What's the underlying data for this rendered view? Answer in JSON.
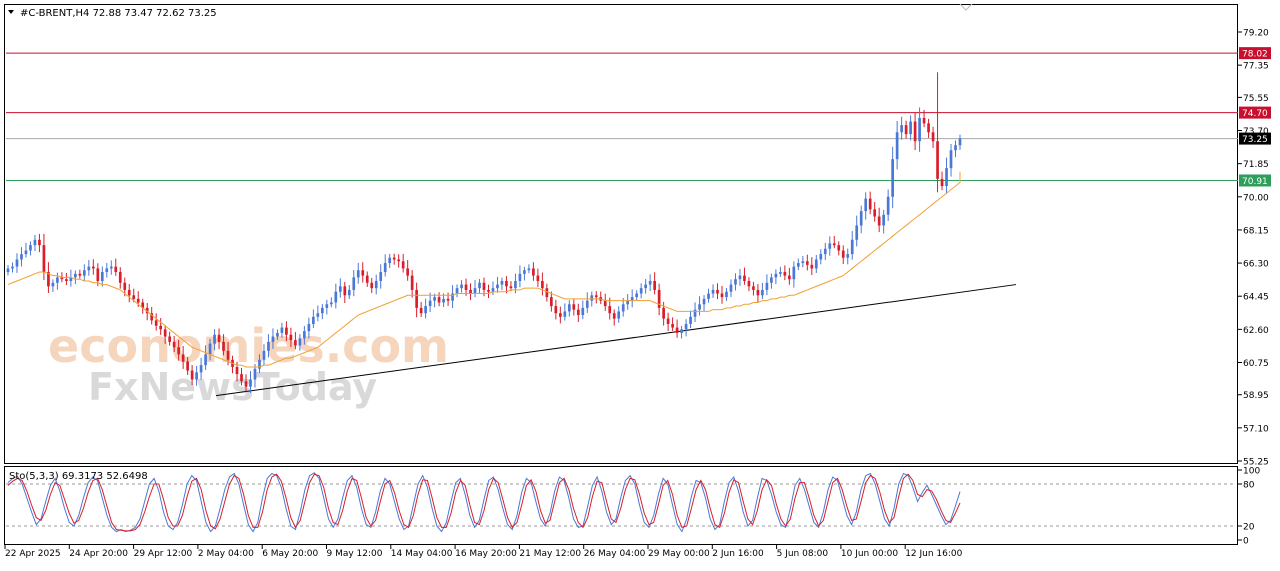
{
  "header": {
    "symbol_line": "#C-BRENT,H4  72.88 73.47 72.62 73.25",
    "menu_icon": "triangle-down-icon"
  },
  "watermark": {
    "line1": "economies.com",
    "line2": "FxNewsToday"
  },
  "colors": {
    "bull_candle": "#4a78d6",
    "bear_candle": "#d91e2a",
    "ma_line": "#f0a030",
    "resistance_line": "#c8102e",
    "support_line": "#2e9e5b",
    "current_line": "#aaaaaa",
    "trendline": "#000000",
    "stoch_main": "#4a78d6",
    "stoch_signal": "#d91e2a"
  },
  "chart_data": [
    {
      "type": "candlestick",
      "title": "#C-BRENT,H4",
      "last_bar": {
        "open": 72.88,
        "high": 73.47,
        "low": 72.62,
        "close": 73.25
      },
      "ylim": [
        55.25,
        80.5
      ],
      "y_ticks": [
        "79.20",
        "77.35",
        "75.55",
        "73.70",
        "71.85",
        "70.00",
        "68.15",
        "66.30",
        "64.45",
        "62.60",
        "60.75",
        "58.95",
        "57.10",
        "55.25"
      ],
      "x_ticks": [
        "22 Apr 2025",
        "24 Apr 20:00",
        "29 Apr 12:00",
        "2 May 04:00",
        "6 May 20:00",
        "9 May 12:00",
        "14 May 04:00",
        "16 May 20:00",
        "21 May 12:00",
        "26 May 04:00",
        "29 May 00:00",
        "2 Jun 16:00",
        "5 Jun 08:00",
        "10 Jun 00:00",
        "12 Jun 16:00"
      ],
      "price_labels": [
        {
          "value": 78.02,
          "text": "78.02",
          "role": "resistance"
        },
        {
          "value": 74.7,
          "text": "74.70",
          "role": "resistance"
        },
        {
          "value": 73.25,
          "text": "73.25",
          "role": "current"
        },
        {
          "value": 70.91,
          "text": "70.91",
          "role": "support"
        }
      ],
      "trendline": {
        "from": {
          "bar": 0.24,
          "value": 58.9
        },
        "to": {
          "bar": 1.0,
          "value": 65.1
        }
      },
      "closes": [
        66.0,
        66.1,
        66.5,
        66.8,
        67.0,
        67.3,
        67.6,
        67.3,
        65.8,
        65.0,
        65.2,
        65.5,
        65.4,
        65.3,
        65.5,
        65.7,
        65.6,
        65.9,
        66.1,
        66.0,
        65.3,
        65.8,
        66.0,
        66.1,
        65.8,
        65.2,
        64.8,
        64.5,
        64.3,
        64.1,
        63.8,
        63.5,
        63.1,
        62.8,
        62.6,
        62.2,
        61.9,
        61.6,
        61.2,
        60.8,
        60.3,
        59.8,
        60.2,
        60.6,
        61.2,
        61.8,
        62.3,
        61.9,
        61.4,
        60.9,
        60.5,
        60.1,
        59.7,
        59.4,
        59.8,
        60.4,
        60.9,
        61.4,
        61.9,
        62.2,
        62.4,
        62.7,
        62.3,
        62.0,
        61.7,
        62.1,
        62.5,
        62.9,
        63.3,
        63.5,
        63.8,
        64.0,
        64.1,
        64.7,
        65.0,
        64.5,
        64.8,
        65.5,
        65.9,
        65.6,
        65.2,
        64.9,
        65.3,
        65.8,
        66.3,
        66.6,
        66.5,
        66.4,
        66.0,
        65.6,
        64.8,
        63.8,
        63.5,
        63.9,
        64.2,
        64.4,
        64.1,
        64.3,
        64.2,
        64.6,
        64.9,
        65.1,
        64.8,
        64.6,
        64.9,
        65.2,
        64.8,
        64.7,
        64.9,
        65.1,
        65.3,
        65.0,
        64.9,
        65.3,
        65.7,
        65.9,
        66.0,
        65.6,
        65.3,
        64.9,
        64.4,
        63.9,
        63.5,
        63.3,
        63.6,
        64.0,
        63.7,
        63.4,
        63.8,
        64.2,
        64.5,
        64.4,
        64.2,
        63.9,
        63.5,
        63.2,
        63.6,
        64.0,
        64.2,
        64.4,
        64.6,
        64.9,
        65.1,
        65.3,
        64.8,
        63.8,
        63.2,
        62.9,
        62.7,
        62.4,
        62.6,
        62.9,
        63.3,
        63.7,
        64.0,
        64.3,
        64.6,
        64.8,
        64.6,
        64.4,
        64.7,
        65.1,
        65.4,
        65.6,
        65.3,
        65.0,
        64.8,
        64.5,
        64.8,
        65.2,
        65.5,
        65.7,
        65.8,
        65.6,
        65.4,
        66.1,
        66.3,
        66.4,
        66.2,
        66.0,
        66.5,
        66.8,
        67.1,
        67.4,
        67.3,
        67.0,
        66.6,
        66.8,
        67.6,
        68.4,
        69.2,
        69.9,
        69.3,
        68.9,
        68.4,
        69.0,
        70.0,
        72.1,
        73.6,
        74.0,
        73.5,
        74.2,
        73.1,
        74.4,
        74.1,
        73.6,
        73.1,
        71.0,
        70.6,
        71.6,
        72.6,
        72.88,
        73.25
      ],
      "ma": [
        65.1,
        65.2,
        65.3,
        65.4,
        65.5,
        65.6,
        65.7,
        65.8,
        65.8,
        65.7,
        65.6,
        65.6,
        65.5,
        65.5,
        65.5,
        65.4,
        65.4,
        65.3,
        65.3,
        65.2,
        65.2,
        65.1,
        65.1,
        65.0,
        64.9,
        64.8,
        64.6,
        64.4,
        64.2,
        64.0,
        63.8,
        63.6,
        63.4,
        63.2,
        63.0,
        62.8,
        62.6,
        62.4,
        62.2,
        62.0,
        61.8,
        61.6,
        61.5,
        61.4,
        61.3,
        61.2,
        61.1,
        61.0,
        60.9,
        60.8,
        60.7,
        60.6,
        60.6,
        60.5,
        60.5,
        60.5,
        60.5,
        60.6,
        60.6,
        60.7,
        60.8,
        60.9,
        61.0,
        61.0,
        61.1,
        61.2,
        61.3,
        61.4,
        61.5,
        61.6,
        61.8,
        62.0,
        62.2,
        62.4,
        62.6,
        62.8,
        63.0,
        63.2,
        63.4,
        63.5,
        63.6,
        63.7,
        63.8,
        63.9,
        64.0,
        64.1,
        64.2,
        64.3,
        64.4,
        64.5,
        64.5,
        64.5,
        64.5,
        64.5,
        64.5,
        64.5,
        64.5,
        64.5,
        64.5,
        64.5,
        64.6,
        64.6,
        64.6,
        64.6,
        64.6,
        64.6,
        64.6,
        64.6,
        64.7,
        64.7,
        64.7,
        64.7,
        64.8,
        64.8,
        64.8,
        64.9,
        64.9,
        64.9,
        64.9,
        64.8,
        64.7,
        64.6,
        64.5,
        64.4,
        64.3,
        64.3,
        64.3,
        64.3,
        64.3,
        64.3,
        64.3,
        64.3,
        64.3,
        64.2,
        64.2,
        64.2,
        64.2,
        64.2,
        64.2,
        64.2,
        64.2,
        64.2,
        64.2,
        64.2,
        64.1,
        64.0,
        63.9,
        63.8,
        63.7,
        63.6,
        63.6,
        63.6,
        63.6,
        63.6,
        63.6,
        63.6,
        63.6,
        63.7,
        63.7,
        63.7,
        63.8,
        63.8,
        63.9,
        63.9,
        64.0,
        64.0,
        64.1,
        64.1,
        64.2,
        64.2,
        64.3,
        64.3,
        64.4,
        64.4,
        64.5,
        64.5,
        64.6,
        64.7,
        64.8,
        64.9,
        65.0,
        65.1,
        65.2,
        65.3,
        65.4,
        65.5,
        65.6,
        65.8,
        66.0,
        66.2,
        66.4,
        66.6,
        66.8,
        67.0,
        67.2,
        67.4,
        67.6,
        67.8,
        68.0,
        68.2,
        68.4,
        68.6,
        68.8,
        69.0,
        69.2,
        69.4,
        69.6,
        69.8,
        70.0,
        70.2,
        70.4,
        70.6,
        70.8,
        71.0,
        71.2,
        71.4
      ]
    },
    {
      "type": "line",
      "title": "Sto(5,3,3) 69.3173 52.6498",
      "ylim": [
        0,
        100
      ],
      "y_ticks": [
        "100",
        "80",
        "20",
        "0"
      ],
      "levels": [
        80,
        20
      ],
      "series": [
        {
          "name": "Sto",
          "values": [
            82,
            88,
            91,
            80,
            60,
            40,
            22,
            30,
            55,
            78,
            88,
            70,
            45,
            25,
            20,
            35,
            60,
            82,
            90,
            85,
            60,
            35,
            18,
            12,
            15,
            12,
            14,
            18,
            30,
            55,
            80,
            88,
            70,
            40,
            20,
            15,
            25,
            50,
            80,
            92,
            85,
            55,
            25,
            12,
            20,
            45,
            72,
            90,
            95,
            80,
            50,
            22,
            12,
            25,
            60,
            88,
            95,
            92,
            75,
            45,
            20,
            15,
            40,
            72,
            92,
            96,
            88,
            60,
            30,
            18,
            30,
            60,
            85,
            92,
            75,
            45,
            22,
            18,
            40,
            70,
            88,
            80,
            55,
            30,
            15,
            20,
            50,
            80,
            92,
            75,
            45,
            20,
            12,
            25,
            55,
            82,
            88,
            65,
            35,
            18,
            28,
            58,
            85,
            90,
            72,
            45,
            22,
            15,
            35,
            68,
            88,
            82,
            55,
            30,
            20,
            38,
            70,
            90,
            85,
            60,
            30,
            18,
            20,
            48,
            78,
            90,
            70,
            40,
            22,
            30,
            60,
            85,
            92,
            80,
            50,
            25,
            18,
            35,
            65,
            88,
            80,
            50,
            22,
            12,
            30,
            62,
            85,
            82,
            60,
            30,
            15,
            22,
            55,
            82,
            90,
            70,
            40,
            20,
            28,
            60,
            88,
            85,
            65,
            40,
            22,
            18,
            45,
            78,
            88,
            72,
            48,
            25,
            18,
            40,
            72,
            90,
            85,
            60,
            35,
            22,
            40,
            72,
            92,
            95,
            80,
            55,
            30,
            20,
            45,
            80,
            95,
            92,
            75,
            55,
            68,
            78,
            65,
            50,
            35,
            22,
            28,
            48,
            69
          ]
        },
        {
          "name": "Signal",
          "values": [
            78,
            84,
            88,
            85,
            70,
            50,
            32,
            28,
            42,
            65,
            82,
            78,
            58,
            38,
            24,
            28,
            45,
            68,
            85,
            88,
            72,
            48,
            25,
            15,
            14,
            13,
            13,
            15,
            22,
            40,
            62,
            80,
            80,
            58,
            32,
            20,
            20,
            35,
            62,
            84,
            88,
            72,
            42,
            20,
            16,
            30,
            55,
            80,
            92,
            88,
            65,
            35,
            18,
            18,
            40,
            72,
            90,
            94,
            84,
            60,
            32,
            18,
            28,
            55,
            82,
            94,
            92,
            75,
            45,
            25,
            22,
            42,
            70,
            88,
            85,
            60,
            32,
            20,
            28,
            55,
            80,
            85,
            68,
            42,
            22,
            18,
            35,
            65,
            86,
            85,
            60,
            32,
            18,
            18,
            38,
            68,
            85,
            78,
            50,
            25,
            22,
            42,
            72,
            88,
            82,
            58,
            32,
            18,
            25,
            50,
            78,
            86,
            70,
            42,
            24,
            28,
            55,
            82,
            88,
            72,
            45,
            25,
            18,
            32,
            62,
            84,
            82,
            55,
            30,
            25,
            45,
            72,
            88,
            86,
            65,
            38,
            22,
            25,
            50,
            78,
            85,
            65,
            35,
            18,
            20,
            45,
            72,
            85,
            72,
            45,
            22,
            18,
            38,
            68,
            86,
            82,
            55,
            30,
            22,
            42,
            72,
            86,
            78,
            52,
            30,
            20,
            30,
            60,
            82,
            82,
            60,
            35,
            20,
            28,
            55,
            82,
            88,
            72,
            48,
            28,
            30,
            55,
            82,
            92,
            88,
            68,
            42,
            25,
            32,
            62,
            88,
            94,
            85,
            65,
            62,
            72,
            70,
            58,
            42,
            28,
            25,
            38,
            53
          ]
        }
      ]
    }
  ]
}
